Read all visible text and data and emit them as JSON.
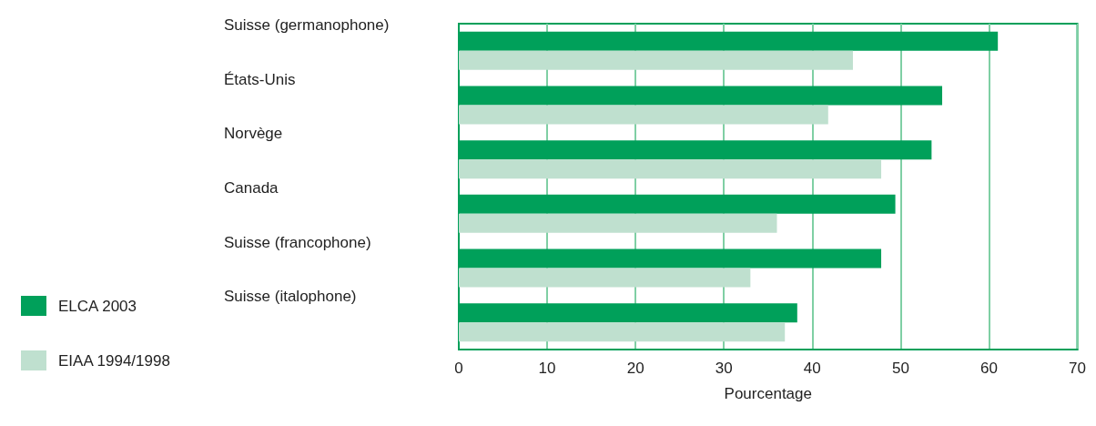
{
  "chart_data": {
    "type": "bar",
    "orientation": "horizontal",
    "xlabel": "Pourcentage",
    "categories": [
      "Suisse (germanophone)",
      "États-Unis",
      "Norvège",
      "Canada",
      "Suisse (francophone)",
      "Suisse (italophone)"
    ],
    "series": [
      {
        "name": "ELCA 2003",
        "color": "#00a05a",
        "values": [
          61,
          54.7,
          53.5,
          49.4,
          47.8,
          38.3
        ]
      },
      {
        "name": "EIAA 1994/1998",
        "color": "#bfe0cf",
        "values": [
          44.6,
          41.8,
          47.8,
          36,
          33,
          36.9
        ]
      }
    ],
    "xlim": [
      0,
      70
    ],
    "xticks": [
      0,
      10,
      20,
      30,
      40,
      50,
      60,
      70
    ],
    "grid": "x",
    "legend": "left"
  }
}
